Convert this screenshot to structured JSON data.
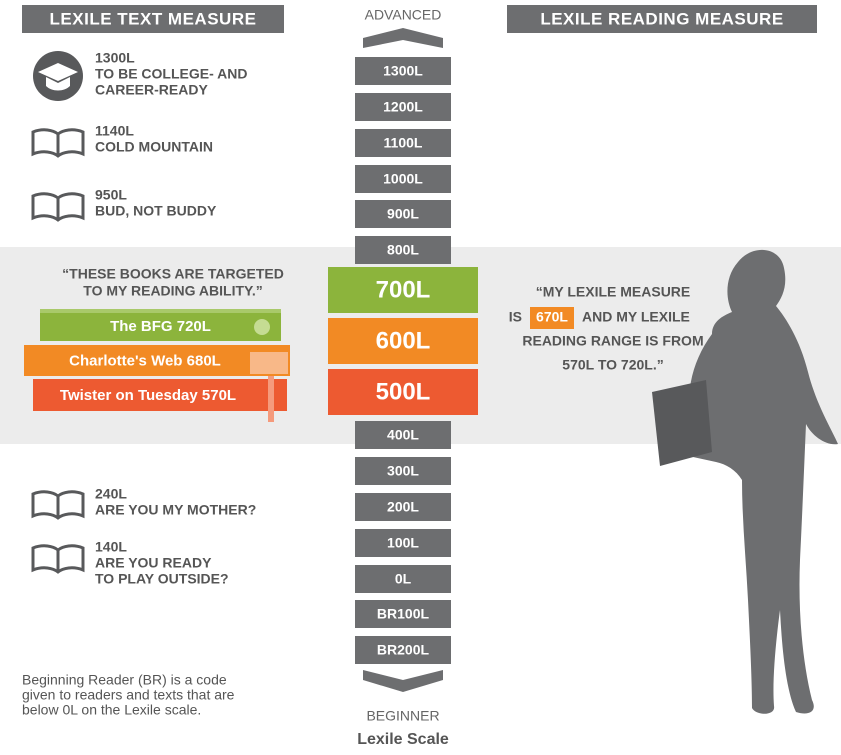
{
  "headers": {
    "left": "LEXILE TEXT MEASURE",
    "right": "LEXILE READING MEASURE"
  },
  "scale": {
    "top": "ADVANCED",
    "bottom": "BEGINNER",
    "caption": "Lexile Scale",
    "levels": [
      {
        "label": "1300L",
        "color": "#6d6e70"
      },
      {
        "label": "1200L",
        "color": "#6d6e70"
      },
      {
        "label": "1100L",
        "color": "#6d6e70"
      },
      {
        "label": "1000L",
        "color": "#6d6e70"
      },
      {
        "label": "900L",
        "color": "#6d6e70"
      },
      {
        "label": "800L",
        "color": "#6d6e70"
      },
      {
        "label": "700L",
        "color": "#8cb43c"
      },
      {
        "label": "600L",
        "color": "#f28a24"
      },
      {
        "label": "500L",
        "color": "#ed5a31"
      },
      {
        "label": "400L",
        "color": "#6d6e70"
      },
      {
        "label": "300L",
        "color": "#6d6e70"
      },
      {
        "label": "200L",
        "color": "#6d6e70"
      },
      {
        "label": "100L",
        "color": "#6d6e70"
      },
      {
        "label": "0L",
        "color": "#6d6e70"
      },
      {
        "label": "BR100L",
        "color": "#6d6e70"
      },
      {
        "label": "BR200L",
        "color": "#6d6e70"
      }
    ]
  },
  "text_measures": [
    {
      "measure": "1300L",
      "title": [
        "TO BE COLLEGE- AND",
        "CAREER-READY"
      ]
    },
    {
      "measure": "1140L",
      "title": [
        "COLD MOUNTAIN"
      ]
    },
    {
      "measure": "950L",
      "title": [
        "BUD, NOT BUDDY"
      ]
    },
    {
      "measure": "240L",
      "title": [
        "ARE YOU MY MOTHER?"
      ]
    },
    {
      "measure": "140L",
      "title": [
        "ARE YOU READY",
        "TO PLAY OUTSIDE?"
      ]
    }
  ],
  "books_quote": [
    "“THESE BOOKS ARE TARGETED",
    "TO MY READING ABILITY.”"
  ],
  "books": [
    "The BFG 720L",
    "Charlotte's Web 680L",
    "Twister on Tuesday 570L"
  ],
  "reader_quote": {
    "line1": "“MY LEXILE MEASURE",
    "line2_prefix": "IS",
    "measure": "670L",
    "line2_suffix": "AND MY LEXILE",
    "line3": "READING RANGE IS FROM",
    "line4": "570L TO 720L.”"
  },
  "footnote": [
    "Beginning Reader (BR) is a code",
    "given to readers and texts that are",
    "below 0L on the Lexile scale."
  ]
}
